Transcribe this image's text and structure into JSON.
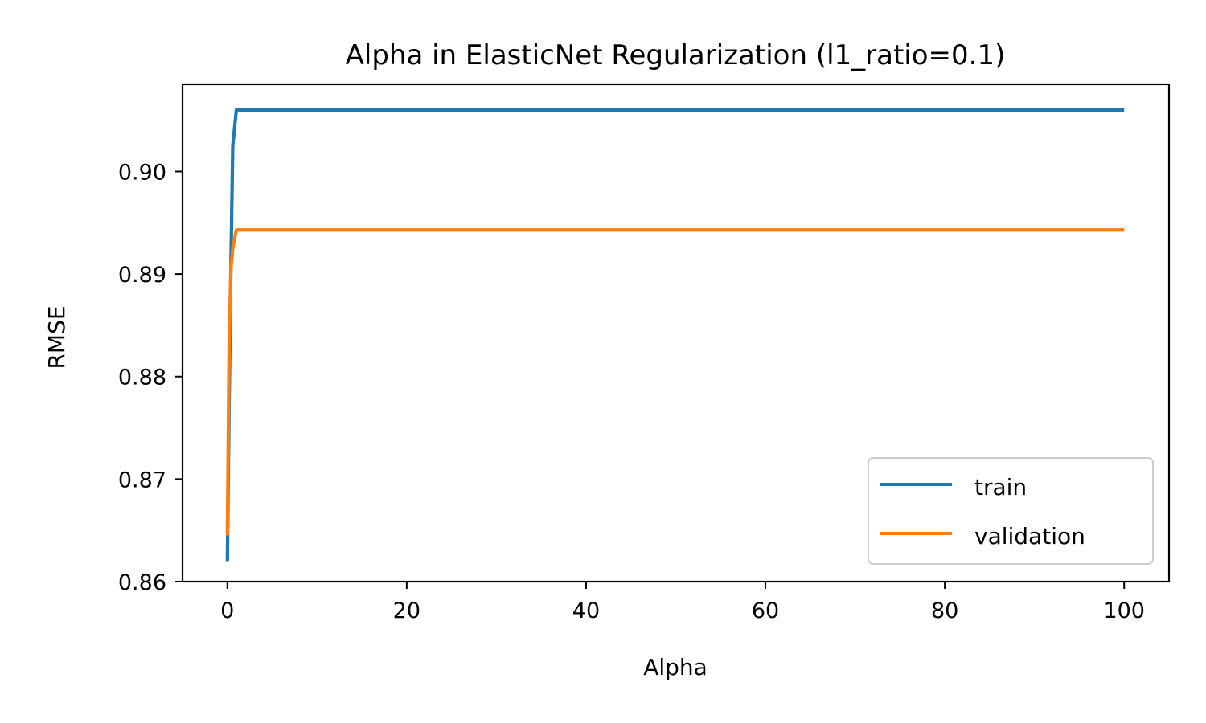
{
  "chart_data": {
    "type": "line",
    "title": "Alpha in ElasticNet Regularization (l1_ratio=0.1)",
    "xlabel": "Alpha",
    "ylabel": "RMSE",
    "xlim": [
      -5,
      105
    ],
    "ylim": [
      0.86,
      0.9085
    ],
    "xticks": [
      0,
      20,
      40,
      60,
      80,
      100
    ],
    "xtick_labels": [
      "0",
      "20",
      "40",
      "60",
      "80",
      "100"
    ],
    "yticks": [
      0.86,
      0.87,
      0.88,
      0.89,
      0.9
    ],
    "ytick_labels": [
      "0.86",
      "0.87",
      "0.88",
      "0.89",
      "0.90"
    ],
    "grid": false,
    "legend": {
      "position": "lower-right"
    },
    "series": [
      {
        "name": "train",
        "color": "#1f77b4",
        "x": [
          0.0,
          0.2,
          0.4,
          0.6,
          1.0,
          2,
          5,
          10,
          20,
          40,
          60,
          80,
          100
        ],
        "y": [
          0.862,
          0.8775,
          0.891,
          0.9025,
          0.906,
          0.906,
          0.906,
          0.906,
          0.906,
          0.906,
          0.906,
          0.906,
          0.906
        ]
      },
      {
        "name": "validation",
        "color": "#ff7f0e",
        "x": [
          0.0,
          0.2,
          0.4,
          0.6,
          1.0,
          2,
          5,
          10,
          20,
          40,
          60,
          80,
          100
        ],
        "y": [
          0.8645,
          0.8835,
          0.8905,
          0.8925,
          0.8943,
          0.8943,
          0.8943,
          0.8943,
          0.8943,
          0.8943,
          0.8943,
          0.8943,
          0.8943
        ]
      }
    ]
  }
}
